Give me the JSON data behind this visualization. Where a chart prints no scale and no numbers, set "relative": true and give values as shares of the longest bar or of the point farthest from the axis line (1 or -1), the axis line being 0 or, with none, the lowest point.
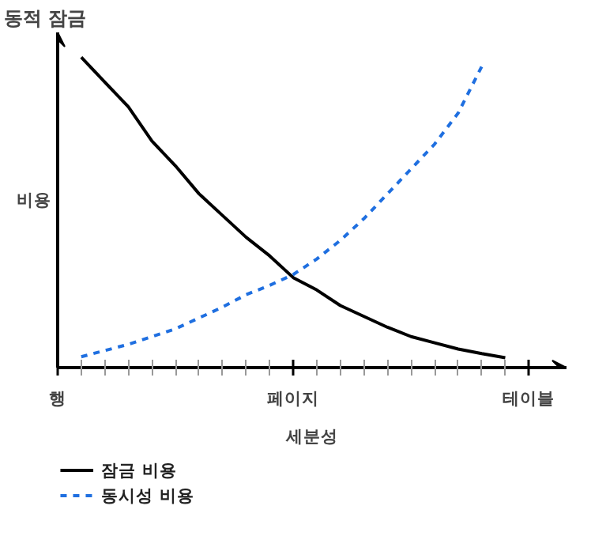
{
  "chart_data": {
    "type": "line",
    "title": "동적 잠금",
    "ylabel": "비용",
    "xlabel": "세분성",
    "relative": true,
    "categories": [
      "행",
      null,
      null,
      null,
      null,
      null,
      null,
      null,
      null,
      null,
      "페이지",
      null,
      null,
      null,
      null,
      null,
      null,
      null,
      null,
      null,
      "테이블"
    ],
    "grid": false,
    "legend": "bottom left",
    "marker": "none",
    "series": [
      {
        "name": "잠금 비용",
        "color": "#000000",
        "line_style": "solid",
        "values": [
          null,
          1.0,
          0.92,
          0.84,
          0.73,
          0.65,
          0.56,
          0.49,
          0.42,
          0.36,
          0.29,
          0.25,
          0.2,
          0.165,
          0.13,
          0.1,
          0.08,
          0.06,
          0.045,
          0.032,
          null
        ]
      },
      {
        "name": "동시성 비용",
        "color": "#1f6fe0",
        "line_style": "dashed",
        "values": [
          null,
          0.035,
          0.055,
          0.075,
          0.1,
          0.125,
          0.16,
          0.195,
          0.235,
          0.265,
          0.3,
          0.35,
          0.41,
          0.48,
          0.56,
          0.64,
          0.72,
          0.82,
          0.97,
          null,
          null
        ]
      }
    ]
  }
}
